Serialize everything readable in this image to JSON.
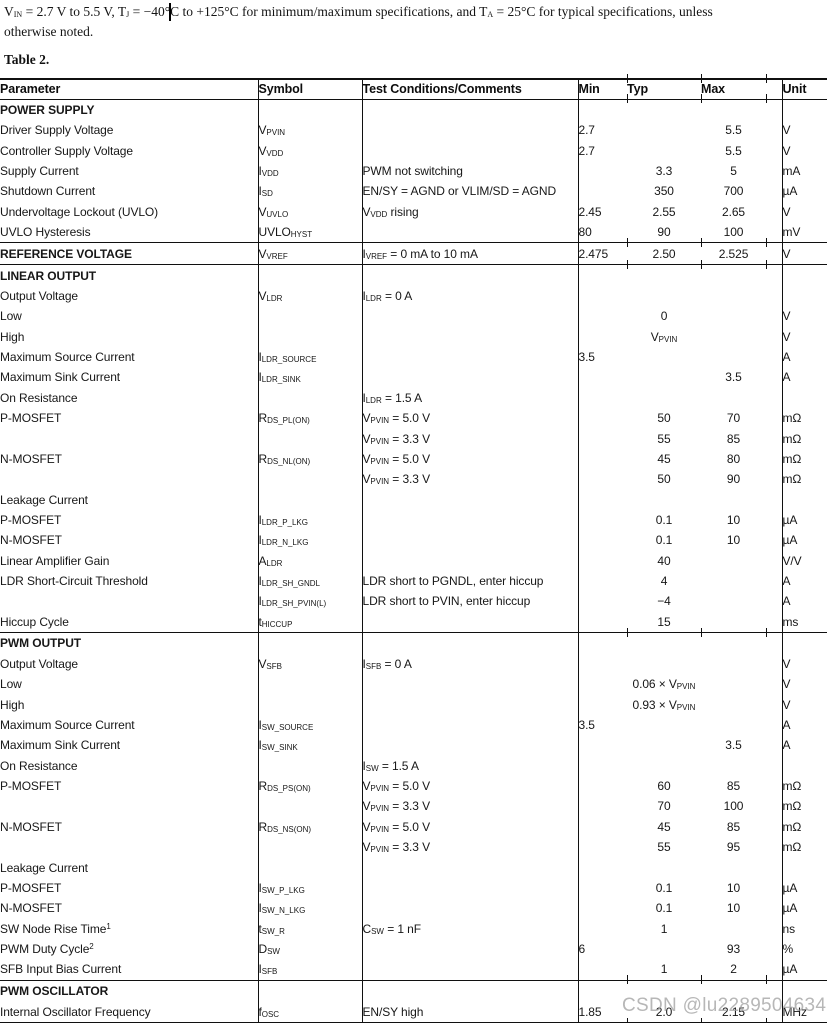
{
  "intro": {
    "line1": "V~IN~ = 2.7 V to 5.5 V, T~J~ = −40°C to +125°C for minimum/maximum specifications, and T~A~ = 25°C for typical specifications, unless",
    "line2": "otherwise noted."
  },
  "caption": "Table 2.",
  "watermark": "CSDN @lu2289504634",
  "table": {
    "headers": [
      "Parameter",
      "Symbol",
      "Test Conditions/Comments",
      "Min",
      "Typ",
      "Max",
      "Unit"
    ],
    "rows": [
      {
        "param": "POWER SUPPLY",
        "style": "section"
      },
      {
        "param": "Driver Supply Voltage",
        "indent": 1,
        "symbol": "V~PVIN~",
        "min": "2.7",
        "max": "5.5",
        "unit": "V"
      },
      {
        "param": "Controller Supply Voltage",
        "indent": 1,
        "symbol": "V~VDD~",
        "min": "2.7",
        "max": "5.5",
        "unit": "V"
      },
      {
        "param": "Supply Current",
        "indent": 1,
        "symbol": "I~VDD~",
        "cond": "PWM not switching",
        "typ": "3.3",
        "max": "5",
        "unit": "mA"
      },
      {
        "param": "Shutdown Current",
        "indent": 1,
        "symbol": "I~SD~",
        "cond": "EN/SY = AGND or VLIM/SD = AGND",
        "typ": "350",
        "max": "700",
        "unit": "µA"
      },
      {
        "param": "Undervoltage Lockout (UVLO)",
        "indent": 1,
        "symbol": "V~UVLO~",
        "cond": "V~VDD~ rising",
        "min": "2.45",
        "typ": "2.55",
        "max": "2.65",
        "unit": "V"
      },
      {
        "param": "UVLO Hysteresis",
        "indent": 1,
        "symbol": "UVLO~HYST~",
        "min": "80",
        "typ": "90",
        "max": "100",
        "unit": "mV"
      },
      {
        "param": "REFERENCE VOLTAGE",
        "style": "section",
        "rule": true,
        "symbol": "V~VREF~",
        "cond": "I~VREF~ = 0 mA to 10 mA",
        "min": "2.475",
        "typ": "2.50",
        "max": "2.525",
        "unit": "V"
      },
      {
        "param": "LINEAR OUTPUT",
        "style": "section",
        "rule": true
      },
      {
        "param": "Output Voltage",
        "indent": 1,
        "symbol": "V~LDR~",
        "cond": "I~LDR~ = 0 A"
      },
      {
        "param": "Low",
        "indent": 2,
        "typ": "0",
        "unit": "V"
      },
      {
        "param": "High",
        "indent": 2,
        "typ": "V~PVIN~",
        "unit": "V"
      },
      {
        "param": "Maximum Source Current",
        "indent": 1,
        "symbol": "I~LDR_SOURCE~",
        "min": "3.5",
        "unit": "A"
      },
      {
        "param": "Maximum Sink Current",
        "indent": 1,
        "symbol": "I~LDR_SINK~",
        "max": "3.5",
        "unit": "A"
      },
      {
        "param": "On Resistance",
        "indent": 1,
        "cond": "I~LDR~ = 1.5 A"
      },
      {
        "param": "P-MOSFET",
        "indent": 2,
        "symbol": "R~DS_PL(ON)~",
        "cond": "V~PVIN~ = 5.0 V",
        "typ": "50",
        "max": "70",
        "unit": "mΩ"
      },
      {
        "cond": "V~PVIN~ = 3.3 V",
        "typ": "55",
        "max": "85",
        "unit": "mΩ"
      },
      {
        "param": "N-MOSFET",
        "indent": 2,
        "symbol": "R~DS_NL(ON)~",
        "cond": "V~PVIN~ = 5.0 V",
        "typ": "45",
        "max": "80",
        "unit": "mΩ"
      },
      {
        "cond": "V~PVIN~ = 3.3 V",
        "typ": "50",
        "max": "90",
        "unit": "mΩ"
      },
      {
        "param": "Leakage Current",
        "indent": 1
      },
      {
        "param": "P-MOSFET",
        "indent": 2,
        "symbol": "I~LDR_P_LKG~",
        "typ": "0.1",
        "max": "10",
        "unit": "µA"
      },
      {
        "param": "N-MOSFET",
        "indent": 2,
        "symbol": "I~LDR_N_LKG~",
        "typ": "0.1",
        "max": "10",
        "unit": "µA"
      },
      {
        "param": "Linear Amplifier Gain",
        "indent": 1,
        "symbol": "A~LDR~",
        "typ": "40",
        "unit": "V/V"
      },
      {
        "param": "LDR Short-Circuit Threshold",
        "indent": 1,
        "symbol": "I~LDR_SH_GNDL~",
        "cond": "LDR short to PGNDL, enter hiccup",
        "typ": "4",
        "unit": "A"
      },
      {
        "symbol": "I~LDR_SH_PVIN(L)~",
        "cond": "LDR short to PVIN, enter hiccup",
        "typ": "−4",
        "unit": "A"
      },
      {
        "param": "Hiccup Cycle",
        "indent": 1,
        "symbol": "t~HICCUP~",
        "typ": "15",
        "unit": "ms"
      },
      {
        "param": "PWM OUTPUT",
        "style": "section",
        "rule": true
      },
      {
        "param": "Output Voltage",
        "indent": 1,
        "symbol": "V~SFB~",
        "cond": "I~SFB~ = 0 A",
        "unit": "V"
      },
      {
        "param": "Low",
        "indent": 2,
        "typ": "0.06 × V~PVIN~",
        "unit": "V"
      },
      {
        "param": "High",
        "indent": 2,
        "typ": "0.93 × V~PVIN~",
        "unit": "V"
      },
      {
        "param": "Maximum Source Current",
        "indent": 1,
        "symbol": "I~SW_SOURCE~",
        "min": "3.5",
        "unit": "A"
      },
      {
        "param": "Maximum Sink Current",
        "indent": 1,
        "symbol": "I~SW_SINK~",
        "max": "3.5",
        "unit": "A"
      },
      {
        "param": "On Resistance",
        "indent": 1,
        "cond": "I~SW~ = 1.5 A"
      },
      {
        "param": "P-MOSFET",
        "indent": 2,
        "symbol": "R~DS_PS(ON)~",
        "cond": "V~PVIN~ = 5.0 V",
        "typ": "60",
        "max": "85",
        "unit": "mΩ"
      },
      {
        "cond": "V~PVIN~ = 3.3 V",
        "typ": "70",
        "max": "100",
        "unit": "mΩ"
      },
      {
        "param": "N-MOSFET",
        "indent": 2,
        "symbol": "R~DS_NS(ON)~",
        "cond": "V~PVIN~ = 5.0 V",
        "typ": "45",
        "max": "85",
        "unit": "mΩ"
      },
      {
        "cond": "V~PVIN~ = 3.3 V",
        "typ": "55",
        "max": "95",
        "unit": "mΩ"
      },
      {
        "param": "Leakage Current",
        "indent": 1
      },
      {
        "param": "P-MOSFET",
        "indent": 2,
        "symbol": "I~SW_P_LKG~",
        "typ": "0.1",
        "max": "10",
        "unit": "µA"
      },
      {
        "param": "N-MOSFET",
        "indent": 2,
        "symbol": "I~SW_N_LKG~",
        "typ": "0.1",
        "max": "10",
        "unit": "µA"
      },
      {
        "param": "SW Node Rise Time^1^",
        "indent": 1,
        "symbol": "t~SW_R~",
        "cond": "C~SW~ = 1 nF",
        "typ": "1",
        "unit": "ns"
      },
      {
        "param": "PWM Duty Cycle^2^",
        "indent": 1,
        "symbol": "D~SW~",
        "min": "6",
        "max": "93",
        "unit": "%"
      },
      {
        "param": "SFB Input Bias Current",
        "indent": 1,
        "symbol": "I~SFB~",
        "typ": "1",
        "max": "2",
        "unit": "µA"
      },
      {
        "param": "PWM OSCILLATOR",
        "style": "section",
        "rule": true
      },
      {
        "param": "Internal Oscillator Frequency",
        "indent": 1,
        "symbol": "f~OSC~",
        "cond": "EN/SY high",
        "min": "1.85",
        "typ": "2.0",
        "max": "2.15",
        "unit": "MHz"
      }
    ]
  }
}
